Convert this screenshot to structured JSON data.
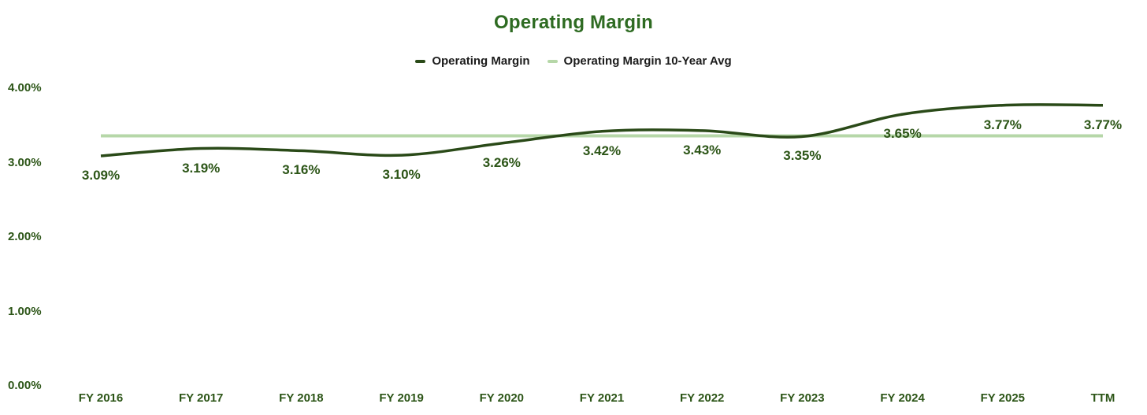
{
  "colors": {
    "background": "#ffffff",
    "title": "#2e6b22",
    "axis_text": "#2c5517",
    "line": "#2a4a18",
    "avg_line": "#b6d7a8",
    "legend_text": "#1c1c1c"
  },
  "legend": {
    "items": [
      {
        "label": "Operating Margin",
        "color": "#2a4a18"
      },
      {
        "label": "Operating Margin 10-Year Avg",
        "color": "#b6d7a8"
      }
    ]
  },
  "chart_data": {
    "type": "line",
    "title": "Operating Margin",
    "categories": [
      "FY 2016",
      "FY 2017",
      "FY 2018",
      "FY 2019",
      "FY 2020",
      "FY 2021",
      "FY 2022",
      "FY 2023",
      "FY 2024",
      "FY 2025",
      "TTM"
    ],
    "series": [
      {
        "name": "Operating Margin",
        "color": "#2a4a18",
        "smooth": true,
        "stroke_width": 3.5,
        "values": [
          3.09,
          3.19,
          3.16,
          3.1,
          3.26,
          3.42,
          3.43,
          3.35,
          3.65,
          3.77,
          3.77
        ],
        "data_labels": [
          "3.09%",
          "3.19%",
          "3.16%",
          "3.10%",
          "3.26%",
          "3.42%",
          "3.43%",
          "3.35%",
          "3.65%",
          "3.77%",
          "3.77%"
        ]
      },
      {
        "name": "Operating Margin 10-Year Avg",
        "color": "#b6d7a8",
        "smooth": false,
        "stroke_width": 4,
        "values": [
          3.36,
          3.36,
          3.36,
          3.36,
          3.36,
          3.36,
          3.36,
          3.36,
          3.36,
          3.36,
          3.36
        ],
        "data_labels": []
      }
    ],
    "xlabel": "",
    "ylabel": "",
    "ylim": [
      0,
      4
    ],
    "yticks": [
      {
        "value": 4,
        "label": "4.00%"
      },
      {
        "value": 3,
        "label": "3.00%"
      },
      {
        "value": 2,
        "label": "2.00%"
      },
      {
        "value": 1,
        "label": "1.00%"
      },
      {
        "value": 0,
        "label": "0.00%"
      }
    ],
    "grid": false,
    "legend_position": "top"
  }
}
